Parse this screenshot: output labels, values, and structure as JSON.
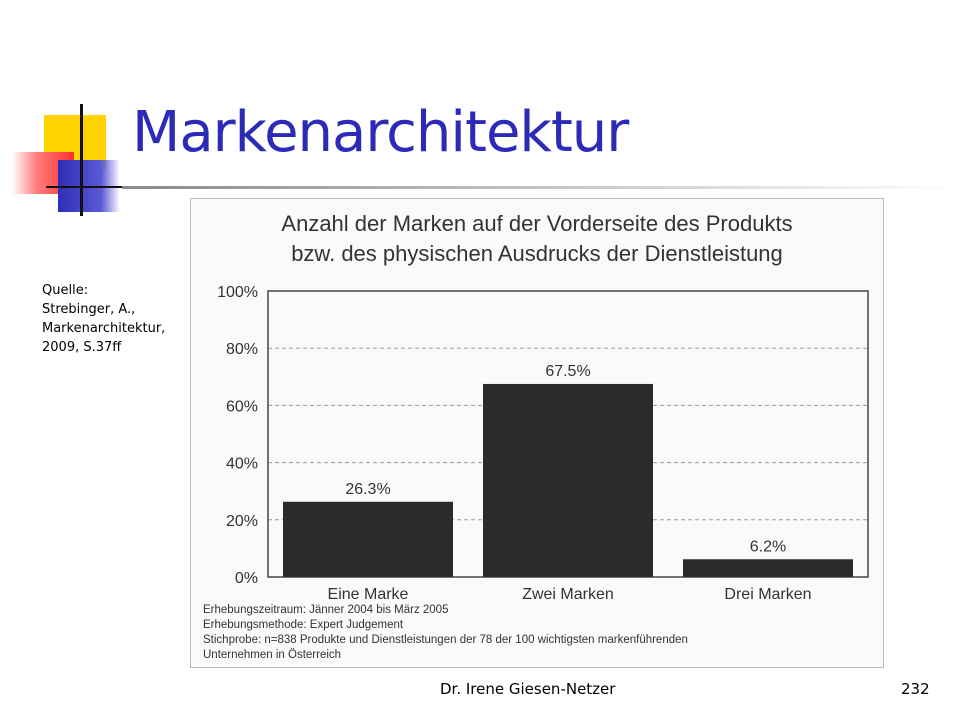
{
  "slide": {
    "title": "Markenarchitektur",
    "source_lines": [
      "Quelle:",
      "Strebinger, A.,",
      "Markenarchitektur,",
      "2009, S.37ff"
    ],
    "footer_author": "Dr. Irene Giesen-Netzer",
    "page_number": "232"
  },
  "chart_data": {
    "type": "bar",
    "title": "Anzahl der Marken auf der Vorderseite des Produkts bzw. des physischen Ausdrucks der Dienstleistung",
    "title_lines": [
      "Anzahl der Marken auf der Vorderseite des Produkts",
      "bzw. des physischen Ausdrucks der Dienstleistung"
    ],
    "categories": [
      "Eine Marke",
      "Zwei Marken",
      "Drei Marken"
    ],
    "values": [
      26.3,
      67.5,
      6.2
    ],
    "value_labels": [
      "26.3%",
      "67.5%",
      "6.2%"
    ],
    "ylim": [
      0,
      100
    ],
    "yticks": [
      0,
      20,
      40,
      60,
      80,
      100
    ],
    "ytick_labels": [
      "0%",
      "20%",
      "40%",
      "60%",
      "80%",
      "100%"
    ],
    "xlabel": "",
    "ylabel": "",
    "grid": true,
    "bar_color": "#2b2b2b",
    "notes": [
      "Erhebungszeitraum: Jänner 2004 bis März 2005",
      "Erhebungsmethode: Expert Judgement",
      "Stichprobe: n=838 Produkte und Dienstleistungen der 78 der 100 wichtigsten markenführenden",
      "Unternehmen in Österreich"
    ]
  },
  "colors": {
    "title": "#2b2bb8",
    "accent_yellow": "#ffd200",
    "accent_red": "#ff3030",
    "accent_blue": "#2d2db8"
  }
}
